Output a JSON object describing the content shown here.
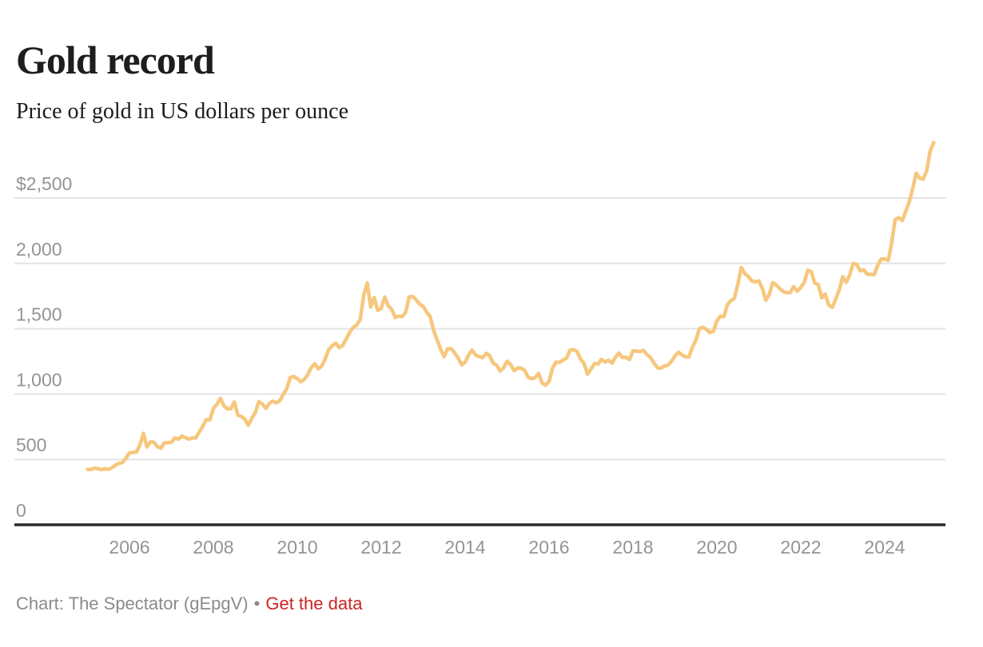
{
  "header": {
    "title": "Gold record",
    "subtitle": "Price of gold in US dollars per ounce"
  },
  "footer": {
    "attribution": "Chart: The Spectator (gEpgV)",
    "separator": "•",
    "link_label": "Get the data"
  },
  "colors": {
    "line": "#f6c77d",
    "grid": "#e3e3e3",
    "axis": "#2b2b2b",
    "tick_label": "#949494",
    "title_text": "#1e1e1e",
    "footer_text": "#8b8b8b",
    "link": "#cc2424",
    "background": "#ffffff"
  },
  "chart_data": {
    "type": "line",
    "title": "Gold record",
    "subtitle": "Price of gold in US dollars per ounce",
    "unit": "US dollars per ounce",
    "frequency": "monthly",
    "x_start": 2005.0,
    "x_range": [
      2005.0,
      2025.17
    ],
    "ylim": [
      0,
      2925
    ],
    "grid": "horizontal",
    "legend": "none",
    "y_ticks": [
      {
        "value": 0,
        "label": "0"
      },
      {
        "value": 500,
        "label": "500"
      },
      {
        "value": 1000,
        "label": "1,000"
      },
      {
        "value": 1500,
        "label": "1,500"
      },
      {
        "value": 2000,
        "label": "2,000"
      },
      {
        "value": 2500,
        "label": "$2,500"
      }
    ],
    "x_ticks": [
      {
        "value": 2006,
        "label": "2006"
      },
      {
        "value": 2008,
        "label": "2008"
      },
      {
        "value": 2010,
        "label": "2010"
      },
      {
        "value": 2012,
        "label": "2012"
      },
      {
        "value": 2014,
        "label": "2014"
      },
      {
        "value": 2016,
        "label": "2016"
      },
      {
        "value": 2018,
        "label": "2018"
      },
      {
        "value": 2020,
        "label": "2020"
      },
      {
        "value": 2022,
        "label": "2022"
      },
      {
        "value": 2024,
        "label": "2024"
      }
    ],
    "series": [
      {
        "name": "Gold price (USD/oz)",
        "values": [
          424,
          423,
          434,
          429,
          422,
          430,
          424,
          437,
          456,
          470,
          476,
          510,
          550,
          555,
          557,
          611,
          700,
          596,
          634,
          632,
          598,
          586,
          627,
          629,
          631,
          665,
          655,
          679,
          667,
          655,
          665,
          665,
          713,
          755,
          806,
          803,
          890,
          922,
          968,
          910,
          888,
          889,
          940,
          839,
          829,
          807,
          761,
          816,
          858,
          943,
          924,
          890,
          929,
          946,
          934,
          949,
          997,
          1043,
          1127,
          1135,
          1118,
          1095,
          1113,
          1149,
          1205,
          1232,
          1193,
          1215,
          1271,
          1342,
          1370,
          1390,
          1356,
          1373,
          1424,
          1473,
          1511,
          1529,
          1573,
          1757,
          1850,
          1666,
          1739,
          1641,
          1656,
          1743,
          1674,
          1650,
          1586,
          1597,
          1593,
          1626,
          1744,
          1747,
          1722,
          1688,
          1671,
          1628,
          1593,
          1487,
          1414,
          1343,
          1286,
          1347,
          1348,
          1316,
          1276,
          1225,
          1244,
          1301,
          1336,
          1299,
          1288,
          1279,
          1311,
          1296,
          1238,
          1222,
          1176,
          1202,
          1251,
          1227,
          1179,
          1198,
          1199,
          1182,
          1130,
          1118,
          1125,
          1159,
          1086,
          1068,
          1097,
          1200,
          1246,
          1242,
          1260,
          1276,
          1337,
          1340,
          1327,
          1267,
          1236,
          1152,
          1192,
          1234,
          1231,
          1266,
          1246,
          1260,
          1237,
          1283,
          1314,
          1280,
          1282,
          1264,
          1331,
          1330,
          1325,
          1335,
          1303,
          1281,
          1238,
          1202,
          1198,
          1215,
          1221,
          1250,
          1291,
          1320,
          1301,
          1286,
          1284,
          1359,
          1413,
          1500,
          1511,
          1495,
          1471,
          1479,
          1560,
          1597,
          1592,
          1683,
          1716,
          1732,
          1843,
          1969,
          1922,
          1900,
          1866,
          1858,
          1867,
          1808,
          1718,
          1762,
          1853,
          1835,
          1807,
          1784,
          1776,
          1777,
          1822,
          1787,
          1817,
          1856,
          1948,
          1937,
          1850,
          1837,
          1737,
          1765,
          1681,
          1664,
          1726,
          1797,
          1898,
          1855,
          1913,
          2000,
          1992,
          1943,
          1951,
          1919,
          1916,
          1915,
          1984,
          2033,
          2034,
          2023,
          2160,
          2335,
          2351,
          2327,
          2398,
          2470,
          2570,
          2690,
          2652,
          2644,
          2708,
          2860,
          2925
        ]
      }
    ]
  }
}
